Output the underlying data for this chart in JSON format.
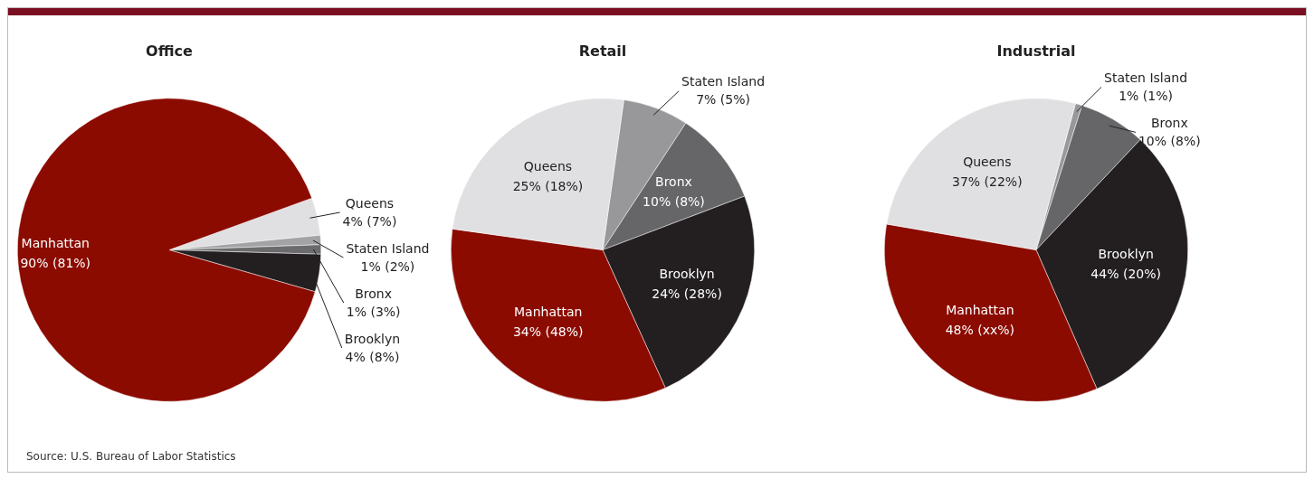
{
  "chart_data": [
    {
      "type": "pie",
      "title": "Office",
      "categories": [
        "Queens",
        "Staten Island",
        "Bronx",
        "Brooklyn",
        "Manhattan"
      ],
      "values": [
        4,
        1,
        1,
        4,
        90
      ],
      "value_labels": [
        "4% (7%)",
        "1% (2%)",
        "1% (3%)",
        "4% (8%)",
        "90% (81%)"
      ],
      "colors": [
        "#e0e0e2",
        "#a3a3a5",
        "#6b6b6d",
        "#231f20",
        "#8b0b00"
      ],
      "legend": false
    },
    {
      "type": "pie",
      "title": "Retail",
      "categories": [
        "Staten Island",
        "Bronx",
        "Brooklyn",
        "Manhattan",
        "Queens"
      ],
      "values": [
        7,
        10,
        24,
        34,
        25
      ],
      "value_labels": [
        "7% (5%)",
        "10% (8%)",
        "24% (28%)",
        "34% (48%)",
        "25% (18%)"
      ],
      "colors": [
        "#98989a",
        "#666668",
        "#231f20",
        "#8b0b00",
        "#e0e0e2"
      ],
      "legend": false
    },
    {
      "type": "pie",
      "title": "Industrial",
      "categories": [
        "Staten Island",
        "Bronx",
        "Brooklyn",
        "Manhattan",
        "Queens"
      ],
      "values": [
        1,
        10,
        44,
        48,
        37
      ],
      "value_labels": [
        "1% (1%)",
        "10% (8%)",
        "44% (20%)",
        "48% (xx%)",
        "37% (22%)"
      ],
      "colors": [
        "#98989a",
        "#666668",
        "#231f20",
        "#8b0b00",
        "#e0e0e2"
      ],
      "legend": false,
      "annotations": [
        "Source: U.S. Bureau of Labor Statistics"
      ]
    }
  ]
}
